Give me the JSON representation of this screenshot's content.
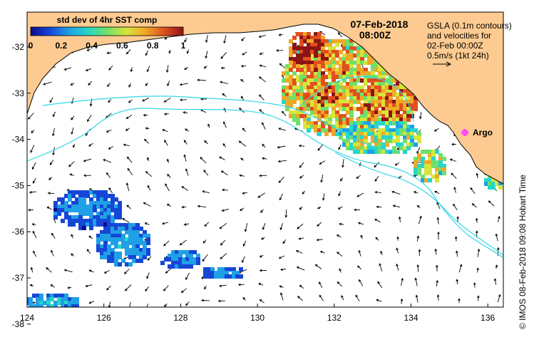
{
  "map": {
    "date": "07-Feb-2018",
    "time": "08:00Z",
    "colorbar": {
      "title": "std dev of 4hr SST comp",
      "ticks": [
        "0",
        "0.2",
        "0.4",
        "0.6",
        "0.8",
        "1"
      ],
      "colors": [
        "#0a0a8c",
        "#1546d6",
        "#1fa0e6",
        "#26d6c8",
        "#6ee06a",
        "#d6e63a",
        "#f0a828",
        "#e0501e",
        "#8c1414"
      ]
    },
    "legend": {
      "line1": "GSLA (0.1m contours)",
      "line2": "and velocities for",
      "line3": "02-Feb 00:00Z",
      "line4": "0.5m/s (1kt 24h)"
    },
    "argo_label": "Argo",
    "credit": "© IMOS 08-Feb-2018 09:08 Hobart Time",
    "lat_ticks": [
      "-32",
      "-33",
      "-34",
      "-35",
      "-36",
      "-37",
      "-38"
    ],
    "lon_ticks": [
      "124",
      "126",
      "128",
      "130",
      "132",
      "134",
      "136"
    ],
    "colors": {
      "land": "#fdcb91",
      "ocean": "#ffffff",
      "contour": "#33d6e6",
      "argo": "#ff33ff"
    }
  }
}
